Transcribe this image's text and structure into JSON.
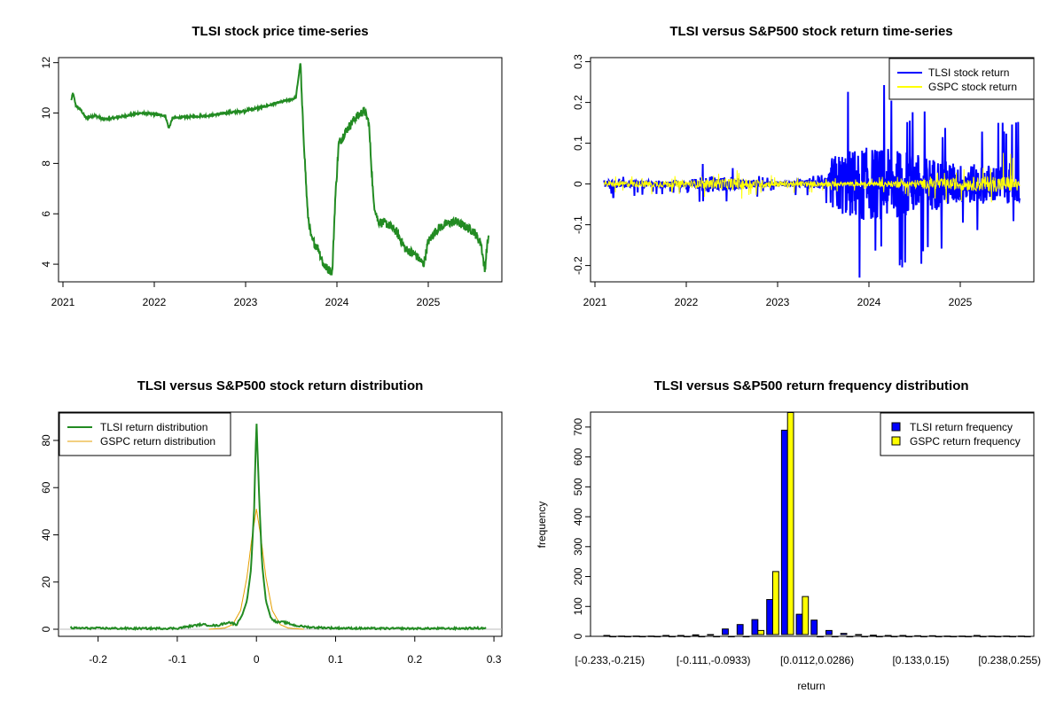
{
  "chart_data": [
    {
      "id": "price",
      "type": "line",
      "title": "TLSI stock price time-series",
      "xlabel": "",
      "ylabel": "",
      "x_ticks": [
        "2021",
        "2022",
        "2023",
        "2024",
        "2025"
      ],
      "x_range": [
        2021.0,
        2025.8
      ],
      "ylim": [
        3.3,
        12.2
      ],
      "y_ticks": [
        4,
        6,
        8,
        10,
        12
      ],
      "legend": null,
      "series": [
        {
          "color": "#228B22",
          "points": [
            [
              2021.09,
              10.5
            ],
            [
              2021.11,
              10.8
            ],
            [
              2021.14,
              10.3
            ],
            [
              2021.2,
              10.1
            ],
            [
              2021.25,
              9.8
            ],
            [
              2021.35,
              9.9
            ],
            [
              2021.45,
              9.75
            ],
            [
              2021.55,
              9.8
            ],
            [
              2021.7,
              9.9
            ],
            [
              2021.85,
              10.0
            ],
            [
              2022.0,
              9.95
            ],
            [
              2022.12,
              9.9
            ],
            [
              2022.16,
              9.4
            ],
            [
              2022.2,
              9.8
            ],
            [
              2022.4,
              9.85
            ],
            [
              2022.6,
              9.9
            ],
            [
              2022.8,
              10.0
            ],
            [
              2023.0,
              10.1
            ],
            [
              2023.2,
              10.25
            ],
            [
              2023.4,
              10.45
            ],
            [
              2023.55,
              10.6
            ],
            [
              2023.6,
              12.0
            ],
            [
              2023.62,
              10.2
            ],
            [
              2023.65,
              8.0
            ],
            [
              2023.68,
              6.0
            ],
            [
              2023.72,
              5.0
            ],
            [
              2023.8,
              4.6
            ],
            [
              2023.85,
              4.0
            ],
            [
              2023.9,
              3.8
            ],
            [
              2023.95,
              3.7
            ],
            [
              2023.98,
              6.5
            ],
            [
              2024.02,
              8.8
            ],
            [
              2024.1,
              9.3
            ],
            [
              2024.2,
              9.8
            ],
            [
              2024.3,
              10.1
            ],
            [
              2024.35,
              9.6
            ],
            [
              2024.4,
              6.5
            ],
            [
              2024.45,
              5.7
            ],
            [
              2024.55,
              5.6
            ],
            [
              2024.65,
              5.3
            ],
            [
              2024.75,
              4.6
            ],
            [
              2024.85,
              4.4
            ],
            [
              2024.95,
              4.0
            ],
            [
              2025.0,
              4.9
            ],
            [
              2025.1,
              5.4
            ],
            [
              2025.2,
              5.6
            ],
            [
              2025.3,
              5.7
            ],
            [
              2025.4,
              5.5
            ],
            [
              2025.5,
              5.3
            ],
            [
              2025.58,
              4.8
            ],
            [
              2025.62,
              3.7
            ],
            [
              2025.64,
              4.6
            ],
            [
              2025.66,
              5.1
            ]
          ]
        }
      ]
    },
    {
      "id": "returns",
      "type": "line",
      "title": "TLSI versus S&P500 stock return time-series",
      "xlabel": "",
      "ylabel": "",
      "x_ticks": [
        "2021",
        "2022",
        "2023",
        "2024",
        "2025"
      ],
      "x_range": [
        2021.0,
        2025.8
      ],
      "ylim": [
        -0.24,
        0.31
      ],
      "y_ticks": [
        -0.2,
        -0.1,
        0.0,
        0.1,
        0.2,
        0.3
      ],
      "legend": {
        "placement": "top-right",
        "entries": [
          "TLSI stock return",
          "GSPC stock return"
        ]
      },
      "series": [
        {
          "name": "TLSI stock return",
          "color": "#0000FF",
          "envelope": [
            [
              2021.1,
              0.02
            ],
            [
              2022.0,
              0.01
            ],
            [
              2022.2,
              0.06
            ],
            [
              2023.0,
              0.01
            ],
            [
              2023.55,
              0.03
            ],
            [
              2023.6,
              0.17
            ],
            [
              2023.9,
              0.29
            ],
            [
              2024.4,
              0.23
            ],
            [
              2025.0,
              0.14
            ],
            [
              2025.65,
              0.16
            ]
          ],
          "neg_envelope": [
            [
              2021.1,
              -0.04
            ],
            [
              2022.0,
              -0.02
            ],
            [
              2022.2,
              -0.06
            ],
            [
              2023.0,
              -0.02
            ],
            [
              2023.55,
              -0.05
            ],
            [
              2023.6,
              -0.23
            ],
            [
              2024.4,
              -0.24
            ],
            [
              2025.0,
              -0.14
            ],
            [
              2025.65,
              -0.11
            ]
          ]
        },
        {
          "name": "GSPC stock return",
          "color": "#FFFF00",
          "envelope": [
            [
              2021.1,
              0.02
            ],
            [
              2022.0,
              0.02
            ],
            [
              2022.5,
              0.04
            ],
            [
              2023.0,
              0.02
            ],
            [
              2024.0,
              0.015
            ],
            [
              2025.2,
              0.04
            ],
            [
              2025.55,
              0.09
            ],
            [
              2025.65,
              0.02
            ]
          ],
          "neg_envelope": [
            [
              2021.1,
              -0.02
            ],
            [
              2022.0,
              -0.03
            ],
            [
              2022.5,
              -0.045
            ],
            [
              2023.0,
              -0.025
            ],
            [
              2024.0,
              -0.015
            ],
            [
              2025.2,
              -0.06
            ],
            [
              2025.65,
              -0.02
            ]
          ]
        }
      ]
    },
    {
      "id": "density",
      "type": "line",
      "title": "TLSI versus S&P500 stock return distribution",
      "xlabel": "",
      "ylabel": "",
      "xlim": [
        -0.25,
        0.31
      ],
      "x_ticks": [
        -0.2,
        -0.1,
        0.0,
        0.1,
        0.2,
        0.3
      ],
      "ylim": [
        -3,
        92
      ],
      "y_ticks": [
        0,
        20,
        40,
        60,
        80
      ],
      "legend": {
        "placement": "top-left",
        "entries": [
          "TLSI return distribution",
          "GSPC return distribution"
        ]
      },
      "series": [
        {
          "name": "TLSI return distribution",
          "color": "#228B22",
          "points": [
            [
              -0.235,
              0.5
            ],
            [
              -0.15,
              0.3
            ],
            [
              -0.1,
              0.4
            ],
            [
              -0.07,
              2
            ],
            [
              -0.05,
              1.5
            ],
            [
              -0.035,
              3
            ],
            [
              -0.025,
              2
            ],
            [
              -0.018,
              6
            ],
            [
              -0.012,
              12
            ],
            [
              -0.007,
              25
            ],
            [
              -0.003,
              50
            ],
            [
              0.0,
              89
            ],
            [
              0.003,
              60
            ],
            [
              0.007,
              28
            ],
            [
              0.012,
              12
            ],
            [
              0.018,
              5
            ],
            [
              0.025,
              3
            ],
            [
              0.035,
              3
            ],
            [
              0.05,
              1.5
            ],
            [
              0.07,
              0.8
            ],
            [
              0.1,
              0.5
            ],
            [
              0.15,
              0.3
            ],
            [
              0.2,
              0.3
            ],
            [
              0.25,
              0.3
            ],
            [
              0.29,
              0.5
            ]
          ]
        },
        {
          "name": "GSPC return distribution",
          "color": "#E69F00",
          "points": [
            [
              -0.06,
              0
            ],
            [
              -0.04,
              0.5
            ],
            [
              -0.03,
              2
            ],
            [
              -0.02,
              8
            ],
            [
              -0.012,
              22
            ],
            [
              -0.006,
              38
            ],
            [
              0.0,
              51
            ],
            [
              0.006,
              38
            ],
            [
              0.012,
              22
            ],
            [
              0.02,
              8
            ],
            [
              0.03,
              2
            ],
            [
              0.04,
              0.5
            ],
            [
              0.06,
              0
            ]
          ]
        }
      ]
    },
    {
      "id": "frequency",
      "type": "bar",
      "title": "TLSI versus S&P500 return frequency distribution",
      "xlabel": "return",
      "ylabel": "frequency",
      "ylim": [
        0,
        750
      ],
      "y_ticks": [
        0,
        100,
        200,
        300,
        400,
        500,
        600,
        700
      ],
      "tick_labels": [
        "[-0.233,-0.215)",
        "[-0.111,-0.0933)",
        "[0.0112,0.0286)",
        "[0.133,0.15)",
        "[0.238,0.255)"
      ],
      "tick_label_bins": [
        0,
        7,
        14,
        21,
        27
      ],
      "legend": {
        "placement": "top-right",
        "entries": [
          "TLSI return frequency",
          "GSPC return frequency"
        ]
      },
      "series": [
        {
          "name": "TLSI return frequency",
          "color": "#0000FF",
          "values": [
            3,
            1,
            1,
            1,
            3,
            3,
            5,
            6,
            25,
            40,
            57,
            125,
            700,
            75,
            55,
            20,
            10,
            6,
            4,
            3,
            3,
            2,
            2,
            1,
            1,
            3,
            1,
            1,
            1
          ]
        },
        {
          "name": "GSPC return frequency",
          "color": "#FFFF00",
          "values": [
            0,
            0,
            0,
            0,
            0,
            0,
            0,
            0,
            0,
            0,
            20,
            220,
            760,
            135,
            0,
            0,
            0,
            0,
            0,
            0,
            0,
            0,
            0,
            0,
            0,
            0,
            0,
            0,
            0
          ]
        }
      ]
    }
  ]
}
